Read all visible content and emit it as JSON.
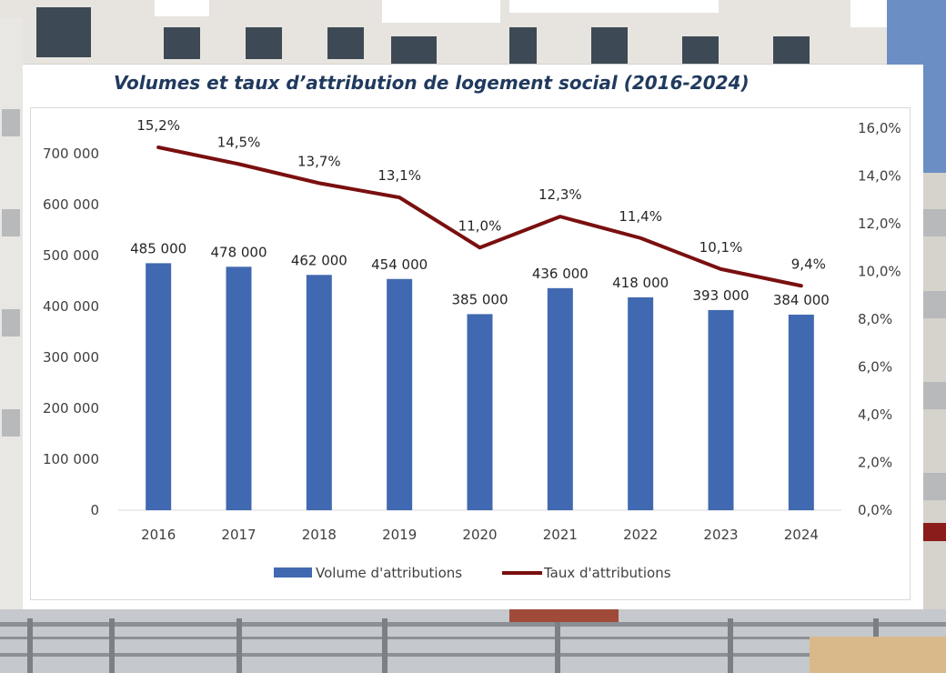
{
  "chart_data": {
    "type": "bar",
    "title": "Volumes et taux d’attribution de logement social (2016-2024)",
    "categories": [
      "2016",
      "2017",
      "2018",
      "2019",
      "2020",
      "2021",
      "2022",
      "2023",
      "2024"
    ],
    "series": [
      {
        "name": "Volume d'attributions",
        "type": "bar",
        "axis": "left",
        "color": "#4169b1",
        "values": [
          485000,
          478000,
          462000,
          454000,
          385000,
          436000,
          418000,
          393000,
          384000
        ],
        "labels": [
          "485 000",
          "478 000",
          "462 000",
          "454 000",
          "385 000",
          "436 000",
          "418 000",
          "393 000",
          "384 000"
        ]
      },
      {
        "name": "Taux d'attributions",
        "type": "line",
        "axis": "right",
        "color": "#7a0f0f",
        "values": [
          15.2,
          14.5,
          13.7,
          13.1,
          11.0,
          12.3,
          11.4,
          10.1,
          9.4
        ],
        "labels": [
          "15,2%",
          "14,5%",
          "13,7%",
          "13,1%",
          "11,0%",
          "12,3%",
          "11,4%",
          "10,1%",
          "9,4%"
        ]
      }
    ],
    "y_left": {
      "range": [
        0,
        700000
      ],
      "ticks": [
        0,
        100000,
        200000,
        300000,
        400000,
        500000,
        600000,
        700000
      ],
      "tick_labels": [
        "0",
        "100 000",
        "200 000",
        "300 000",
        "400 000",
        "500 000",
        "600 000",
        "700 000"
      ]
    },
    "y_right": {
      "range": [
        0,
        16
      ],
      "ticks": [
        0,
        2,
        4,
        6,
        8,
        10,
        12,
        14,
        16
      ],
      "tick_labels": [
        "0,0%",
        "2,0%",
        "4,0%",
        "6,0%",
        "8,0%",
        "10,0%",
        "12,0%",
        "14,0%",
        "16,0%"
      ]
    },
    "grid": false,
    "legend_position": "bottom"
  }
}
